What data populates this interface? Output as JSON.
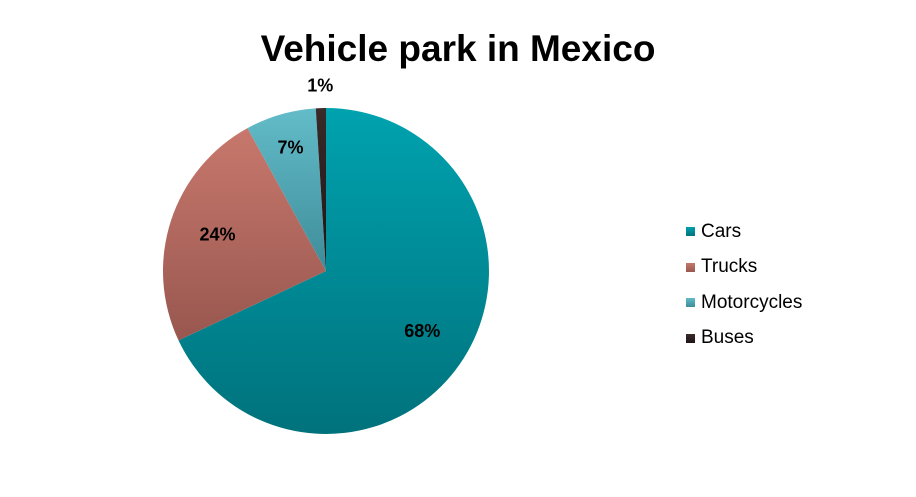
{
  "chart_data": {
    "type": "pie",
    "title": "Vehicle park in Mexico",
    "categories": [
      "Cars",
      "Trucks",
      "Motorcycles",
      "Buses"
    ],
    "values": [
      68,
      24,
      7,
      1
    ],
    "value_labels": [
      "68%",
      "24%",
      "7%",
      "1%"
    ],
    "colors": [
      "#00A2AF",
      "#C8786D",
      "#63BCC9",
      "#3A2A2A"
    ],
    "colors_dark": [
      "#00727C",
      "#98574F",
      "#3E8C99",
      "#1E1515"
    ],
    "legend_position": "right"
  }
}
